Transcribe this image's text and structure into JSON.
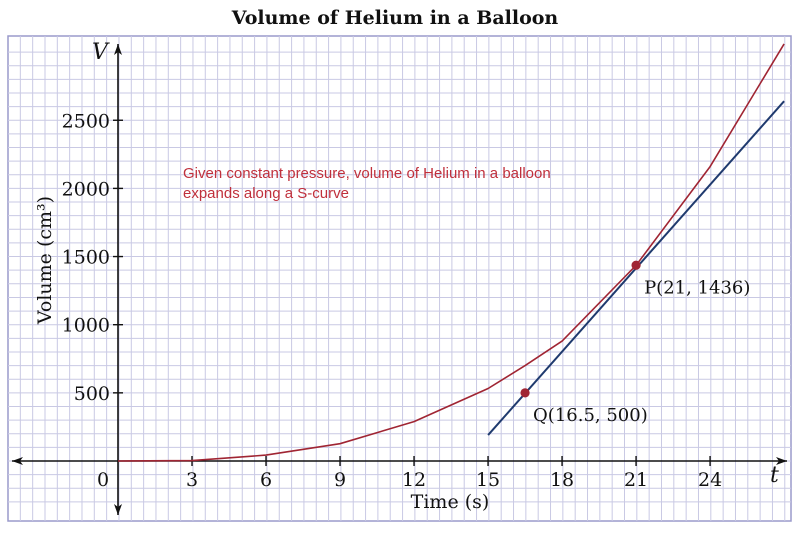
{
  "chart_data": {
    "type": "line",
    "title": "Volume of Helium in a Balloon",
    "xlabel": "Time (s)",
    "ylabel": "Volume (cm³)",
    "x_axis_letter": "t",
    "y_axis_letter": "V",
    "origin_label": "0",
    "xlim": [
      -4.5,
      27.5
    ],
    "ylim": [
      -400,
      3050
    ],
    "x_ticks": [
      {
        "value": 3,
        "label": "3"
      },
      {
        "value": 6,
        "label": "6"
      },
      {
        "value": 9,
        "label": "9"
      },
      {
        "value": 12,
        "label": "12"
      },
      {
        "value": 15,
        "label": "15"
      },
      {
        "value": 18,
        "label": "18"
      },
      {
        "value": 21,
        "label": "21"
      },
      {
        "value": 24,
        "label": "24"
      }
    ],
    "y_ticks": [
      {
        "value": 500,
        "label": "500"
      },
      {
        "value": 1000,
        "label": "1000"
      },
      {
        "value": 1500,
        "label": "1500"
      },
      {
        "value": 2000,
        "label": "2000"
      },
      {
        "value": 2500,
        "label": "2500"
      }
    ],
    "grid": true,
    "series": [
      {
        "color": "#a02533",
        "x": [
          0,
          3,
          6,
          9,
          12,
          15,
          16.5,
          18,
          21,
          24,
          27
        ],
        "y": [
          0,
          3,
          43,
          127,
          289,
          532,
          700,
          880,
          1436,
          2160,
          3060
        ]
      },
      {
        "color": "#1f3a6e",
        "x": [
          15,
          27
        ],
        "y": [
          190,
          2640
        ]
      }
    ],
    "points": [
      {
        "x": 21,
        "y": 1436,
        "label": "P(21, 1436)",
        "color": "#a02533"
      },
      {
        "x": 16.5,
        "y": 500,
        "label": "Q(16.5, 500)",
        "color": "#a02533"
      }
    ],
    "annotations": [
      {
        "line1": "Given constant pressure, volume of Helium in a balloon",
        "line2": "expands along a S-curve",
        "color": "#c0303c"
      }
    ]
  }
}
